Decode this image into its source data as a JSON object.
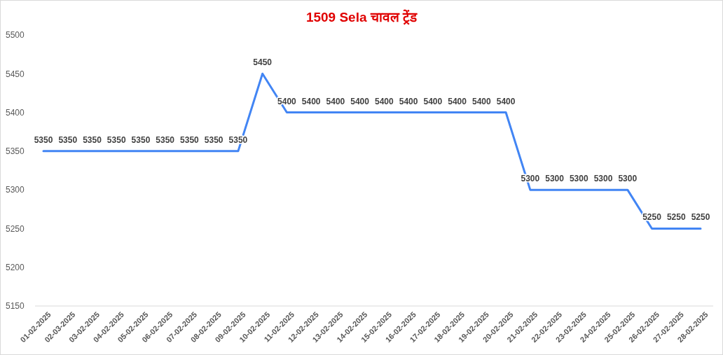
{
  "chart_data": {
    "type": "line",
    "title": "1509 Sela चावल ट्रेंड",
    "categories": [
      "01-02-2025",
      "02-03-2025",
      "03-02-2025",
      "04-02-2025",
      "05-02-2025",
      "06-02-2025",
      "07-02-2025",
      "08-02-2025",
      "09-02-2025",
      "10-02-2025",
      "11-02-2025",
      "12-02-2025",
      "13-02-2025",
      "14-02-2025",
      "15-02-2025",
      "16-02-2025",
      "17-02-2025",
      "18-02-2025",
      "19-02-2025",
      "20-02-2025",
      "21-02-2025",
      "22-02-2025",
      "23-02-2025",
      "24-02-2025",
      "25-02-2025",
      "26-02-2025",
      "27-02-2025",
      "28-02-2025"
    ],
    "series": [
      {
        "color": "#4285f4",
        "values": [
          5350,
          5350,
          5350,
          5350,
          5350,
          5350,
          5350,
          5350,
          5350,
          5450,
          5400,
          5400,
          5400,
          5400,
          5400,
          5400,
          5400,
          5400,
          5400,
          5400,
          5300,
          5300,
          5300,
          5300,
          5300,
          5250,
          5250,
          5250
        ]
      }
    ],
    "ylim": [
      5150,
      5500
    ],
    "yticks": [
      5150,
      5200,
      5250,
      5300,
      5350,
      5400,
      5450,
      5500
    ],
    "grid": false,
    "marker": "none",
    "line_style": "solid",
    "data_labels": true
  }
}
